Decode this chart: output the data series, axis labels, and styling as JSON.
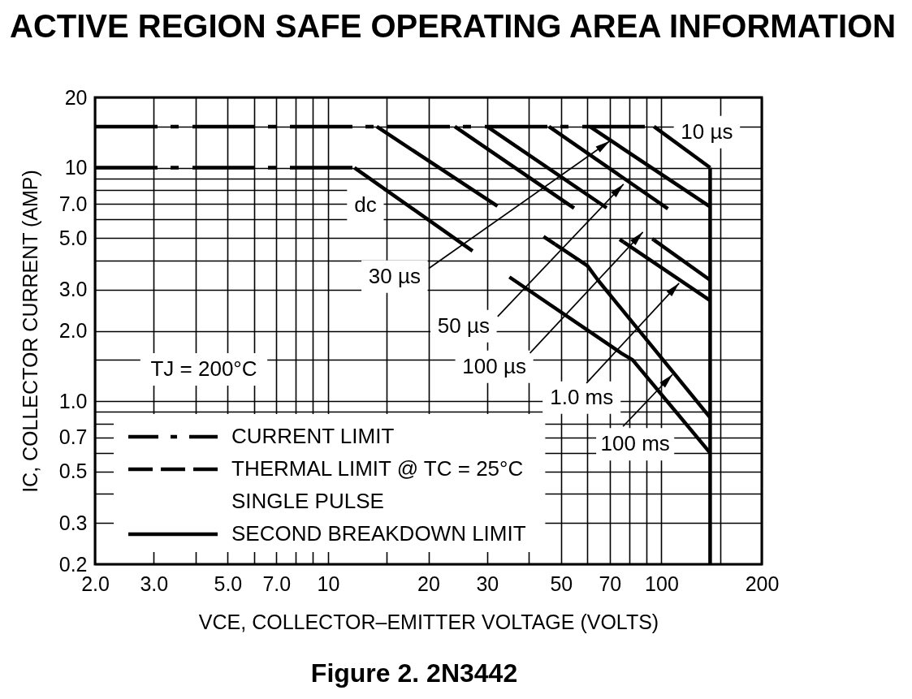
{
  "chart_data": {
    "type": "line",
    "title": "ACTIVE REGION SAFE OPERATING AREA INFORMATION",
    "xlabel": "VCE, COLLECTOR–EMITTER VOLTAGE (VOLTS)",
    "ylabel": "IC, COLLECTOR CURRENT (AMP)",
    "log": "xy",
    "xlim": [
      2,
      200
    ],
    "ylim": [
      0.2,
      20
    ],
    "xticks": [
      {
        "value": 2,
        "label": "2.0"
      },
      {
        "value": 3,
        "label": "3.0"
      },
      {
        "value": 4,
        "label": null
      },
      {
        "value": 5,
        "label": "5.0"
      },
      {
        "value": 6,
        "label": null
      },
      {
        "value": 7,
        "label": "7.0"
      },
      {
        "value": 8,
        "label": null
      },
      {
        "value": 9,
        "label": null
      },
      10,
      {
        "value": 15,
        "label": null
      },
      20,
      30,
      {
        "value": 40,
        "label": null
      },
      50,
      {
        "value": 60,
        "label": null
      },
      70,
      {
        "value": 80,
        "label": null
      },
      {
        "value": 90,
        "label": null
      },
      100,
      {
        "value": 150,
        "label": null
      },
      200
    ],
    "yticks": [
      0.2,
      0.3,
      {
        "value": 0.4,
        "label": null
      },
      0.5,
      {
        "value": 0.6,
        "label": null
      },
      0.7,
      {
        "value": 0.8,
        "label": null
      },
      {
        "value": 0.9,
        "label": null
      },
      {
        "value": 1,
        "label": "1.0"
      },
      {
        "value": 1.5,
        "label": null
      },
      {
        "value": 2,
        "label": "2.0"
      },
      {
        "value": 3,
        "label": "3.0"
      },
      {
        "value": 4,
        "label": null
      },
      {
        "value": 5,
        "label": "5.0"
      },
      {
        "value": 6,
        "label": null
      },
      {
        "value": 7,
        "label": "7.0"
      },
      {
        "value": 8,
        "label": null
      },
      {
        "value": 9,
        "label": null
      },
      10,
      {
        "value": 15,
        "label": null
      },
      20
    ],
    "grid": true,
    "legend": "bottom left",
    "series": [
      {
        "name": "CURRENT LIMIT",
        "color": "#000000",
        "line_style": "dashdot",
        "x": [
          2,
          95,
          null,
          2,
          12
        ],
        "values": [
          15,
          15,
          null,
          10,
          10
        ]
      },
      {
        "name": "THERMAL LIMIT @ TC = 25°C\nSINGLE PULSE",
        "color": "#000000",
        "line_style": "dashed",
        "x": [
          12,
          35,
          null,
          14,
          48,
          null,
          24,
          77,
          null,
          30,
          95,
          null,
          46,
          140,
          null,
          61,
          140,
          null,
          95,
          140
        ],
        "values": [
          10,
          3.4,
          null,
          15,
          4.7,
          null,
          15,
          4.8,
          null,
          15,
          4.9,
          null,
          15,
          5.0,
          null,
          15,
          6.8,
          null,
          15,
          10
        ]
      },
      {
        "name": "SECOND BREAKDOWN LIMIT",
        "color": "#000000",
        "line_style": "solid",
        "x": [
          35,
          76,
          82,
          140,
          null,
          48,
          60,
          64.5,
          140,
          null,
          77,
          140,
          null,
          95,
          140,
          null,
          140,
          140
        ],
        "values": [
          3.4,
          1.6,
          1.5,
          0.6,
          null,
          4.7,
          3.8,
          3.3,
          0.85,
          null,
          4.8,
          2.7,
          null,
          4.9,
          3.3,
          null,
          10,
          0.2
        ]
      }
    ],
    "annotations": [
      {
        "text": "dc",
        "x": 14,
        "y": 8.5
      },
      {
        "text": "10 µs",
        "x": 110,
        "y": 13
      },
      {
        "text": "30 µs",
        "x": 70,
        "y": 13
      },
      {
        "text": "50 µs",
        "x": 77,
        "y": 8.5
      },
      {
        "text": "100 µs",
        "x": 88,
        "y": 5.3
      },
      {
        "text": "1.0 ms",
        "x": 113,
        "y": 3.2
      },
      {
        "text": "100 ms",
        "x": 108,
        "y": 1.3
      },
      "TJ = 200°C",
      "Figure 2. 2N3442"
    ]
  }
}
